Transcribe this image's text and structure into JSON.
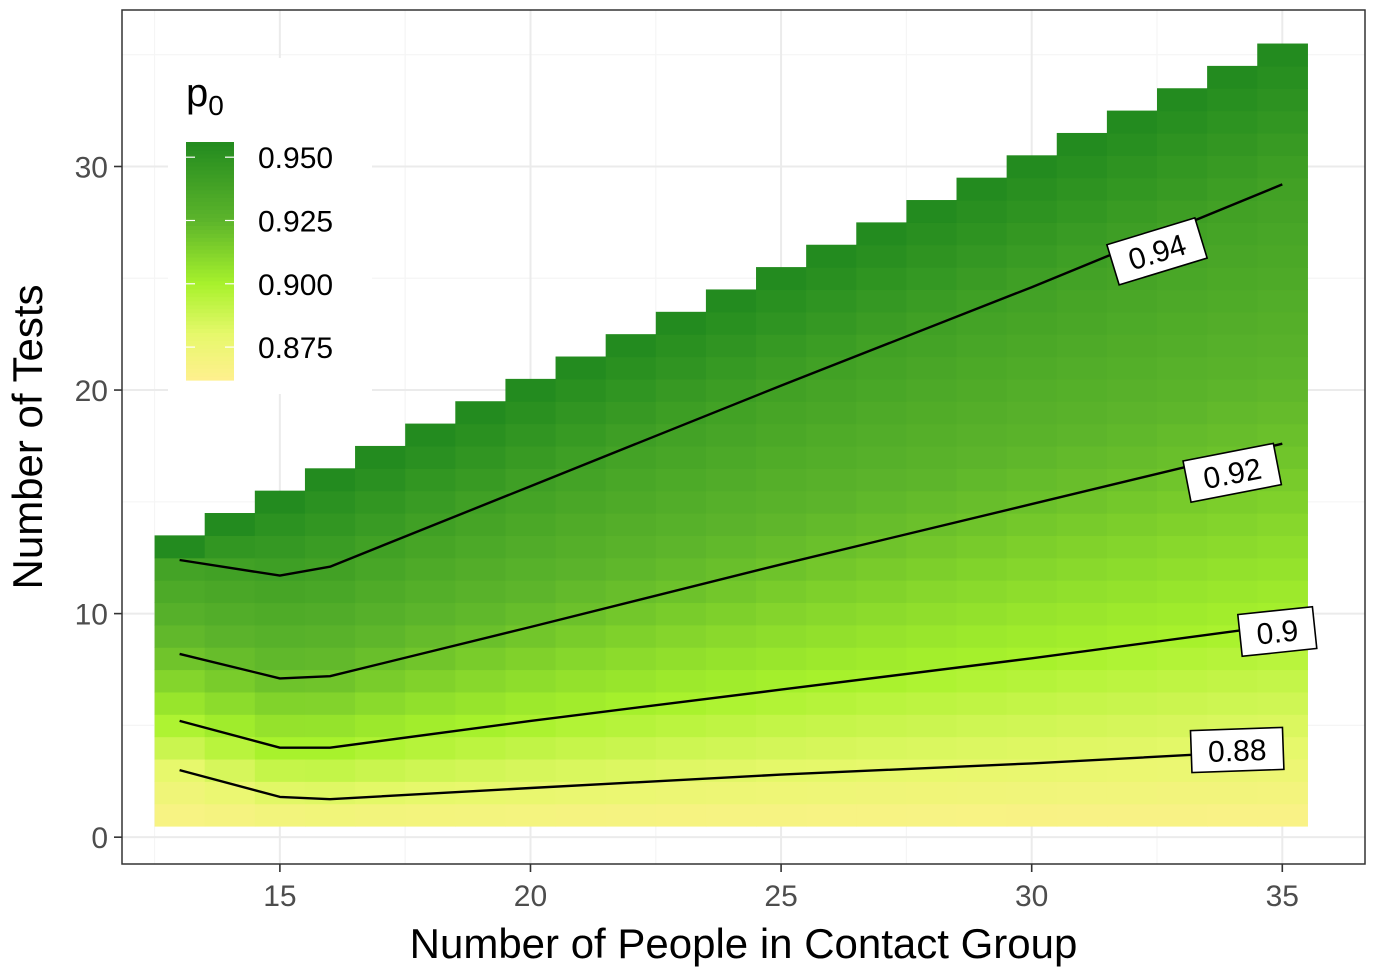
{
  "chart_data": {
    "type": "heatmap",
    "xlabel": "Number of People in Contact Group",
    "ylabel": "Number of Tests",
    "xlim": [
      11.85,
      36.65
    ],
    "ylim": [
      -1.2,
      37.0
    ],
    "x_ticks": [
      15,
      20,
      25,
      30,
      35
    ],
    "y_ticks": [
      0,
      10,
      20,
      30
    ],
    "grid": true,
    "x_range": [
      13,
      35
    ],
    "y_min": 1,
    "max_tests": {
      "x_start": 13,
      "y_start": 13,
      "slope": 1
    },
    "legend": {
      "title": "p",
      "title_subscript": "0",
      "placement": "top-left inside",
      "breaks": [
        "0.950",
        "0.925",
        "0.900",
        "0.875"
      ],
      "break_values": [
        0.95,
        0.925,
        0.9,
        0.875
      ],
      "limits": [
        0.862,
        0.956
      ]
    },
    "color_scale": {
      "stops": [
        {
          "value": 0.862,
          "color": "#fff08f"
        },
        {
          "value": 0.88,
          "color": "#e7f86c"
        },
        {
          "value": 0.9,
          "color": "#a8f22c"
        },
        {
          "value": 0.925,
          "color": "#5db52b"
        },
        {
          "value": 0.956,
          "color": "#238b1f"
        }
      ]
    },
    "contours": [
      {
        "level": "0.94",
        "x": [
          13,
          15,
          16,
          20,
          25,
          30,
          35
        ],
        "y": [
          12.4,
          11.7,
          12.1,
          15.7,
          20.2,
          24.6,
          29.2
        ]
      },
      {
        "level": "0.92",
        "x": [
          13,
          15,
          16,
          20,
          25,
          30,
          35
        ],
        "y": [
          8.2,
          7.1,
          7.2,
          9.4,
          12.2,
          14.9,
          17.6
        ]
      },
      {
        "level": "0.9",
        "x": [
          13,
          15,
          16,
          20,
          25,
          30,
          35
        ],
        "y": [
          5.2,
          4.0,
          4.0,
          5.2,
          6.6,
          8.0,
          9.5
        ]
      },
      {
        "level": "0.88",
        "x": [
          13,
          15,
          16,
          20,
          25,
          30,
          35
        ],
        "y": [
          3.0,
          1.8,
          1.7,
          2.2,
          2.8,
          3.3,
          3.9
        ]
      }
    ],
    "contour_labels": [
      {
        "text": "0.94",
        "x": 32.5,
        "y": 26.2,
        "angle": -17
      },
      {
        "text": "0.92",
        "x": 34.0,
        "y": 16.3,
        "angle": -11
      },
      {
        "text": "0.9",
        "x": 34.9,
        "y": 9.2,
        "angle": -6
      },
      {
        "text": "0.88",
        "x": 34.1,
        "y": 3.9,
        "angle": -2
      }
    ]
  },
  "colors": {
    "panel_border": "#333333",
    "grid_major": "#ebebeb",
    "grid_minor": "#f5f5f5",
    "contour_line": "#000000"
  }
}
